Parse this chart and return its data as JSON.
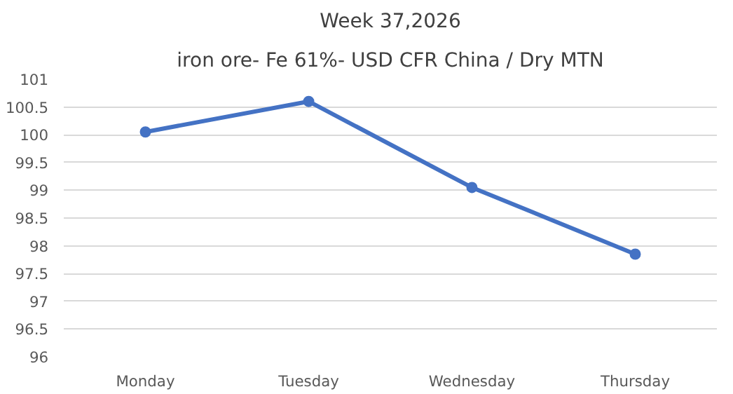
{
  "chart_data": {
    "type": "line",
    "title": "Week 37,2026",
    "subtitle": "iron ore- Fe 61%- USD CFR China / Dry MTN",
    "categories": [
      "Monday",
      "Tuesday",
      "Wednesday",
      "Thursday"
    ],
    "series": [
      {
        "color": "#4472c4",
        "values": [
          100.05,
          100.6,
          99.05,
          97.85
        ]
      }
    ],
    "ylim": [
      96,
      101
    ],
    "yticks": [
      96,
      96.5,
      97,
      97.5,
      98,
      98.5,
      99,
      99.5,
      100,
      100.5,
      101
    ],
    "grid": "y",
    "marker": "circle",
    "line_style": "solid"
  }
}
